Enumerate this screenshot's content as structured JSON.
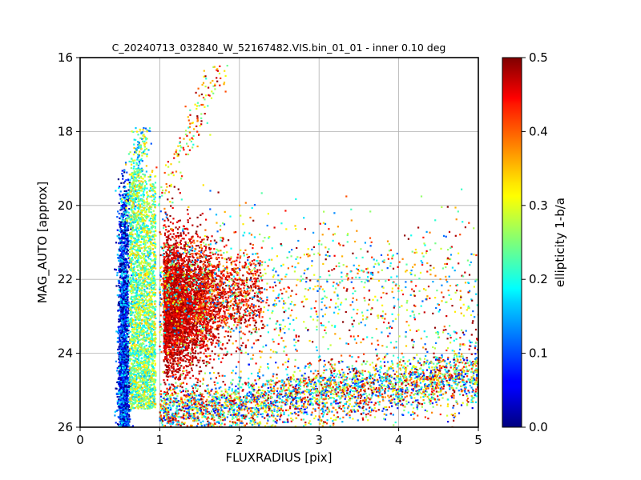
{
  "chart_data": {
    "type": "scatter",
    "title": "C_20240713_032840_W_52167482.VIS.bin_01_01 - inner 0.10 deg",
    "xlabel": "FLUXRADIUS [pix]",
    "ylabel": "MAG_AUTO [approx]",
    "xlim": [
      0,
      5
    ],
    "ylim": [
      26,
      16
    ],
    "y_inverted": true,
    "xticks": [
      "0",
      "1",
      "2",
      "3",
      "4",
      "5"
    ],
    "yticks": [
      "16",
      "18",
      "20",
      "22",
      "24",
      "26"
    ],
    "grid": true,
    "colorbar": {
      "label": "ellipticity 1-b/a",
      "range": [
        0.0,
        0.5
      ],
      "ticks": [
        "0.0",
        "0.1",
        "0.2",
        "0.3",
        "0.4",
        "0.5"
      ],
      "colormap": "jet"
    },
    "point_groups": [
      {
        "group": "stellar-locus",
        "x_range": [
          0.48,
          0.62
        ],
        "y_range": [
          19.0,
          26.0
        ],
        "ellipticity_range": [
          0.0,
          0.2
        ],
        "approx_count": 2500
      },
      {
        "group": "stellar-locus-upper",
        "x_range": [
          0.55,
          0.85
        ],
        "y_range": [
          17.9,
          20.5
        ],
        "ellipticity_range": [
          0.1,
          0.35
        ],
        "approx_count": 300
      },
      {
        "group": "transition-band",
        "x_range": [
          0.62,
          0.95
        ],
        "y_range": [
          19.0,
          25.5
        ],
        "ellipticity_range": [
          0.15,
          0.35
        ],
        "approx_count": 2500
      },
      {
        "group": "galaxy-core",
        "x_range": [
          0.95,
          1.6
        ],
        "y_range": [
          20.5,
          24.5
        ],
        "ellipticity_range": [
          0.4,
          0.5
        ],
        "approx_count": 3500
      },
      {
        "group": "galaxy-core-extension",
        "x_range": [
          1.5,
          2.3
        ],
        "y_range": [
          21.0,
          24.0
        ],
        "ellipticity_range": [
          0.35,
          0.5
        ],
        "approx_count": 900
      },
      {
        "group": "bright-tail",
        "x_range": [
          1.0,
          1.8
        ],
        "y_range": [
          16.2,
          20.0
        ],
        "ellipticity_range": [
          0.2,
          0.5
        ],
        "approx_count": 150
      },
      {
        "group": "diffuse-field",
        "x_range": [
          1.0,
          5.0
        ],
        "y_range": [
          19.5,
          24.5
        ],
        "ellipticity_range": [
          0.1,
          0.5
        ],
        "approx_count": 1500
      },
      {
        "group": "faint-band",
        "x_range": [
          1.0,
          5.0
        ],
        "y_range": [
          24.0,
          26.0
        ],
        "ellipticity_range": [
          0.05,
          0.5
        ],
        "approx_count": 3500
      }
    ]
  }
}
